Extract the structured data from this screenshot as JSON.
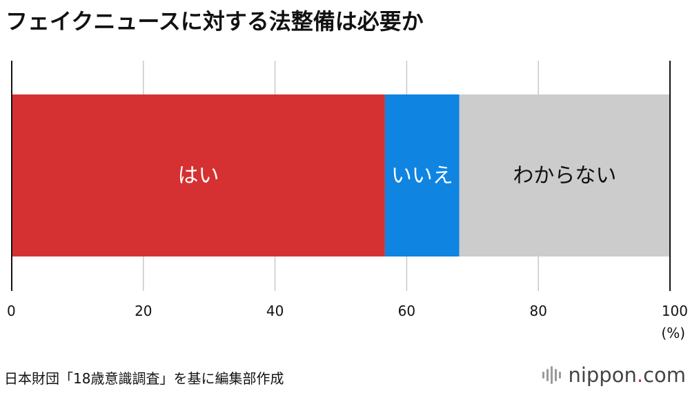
{
  "title": "フェイクニュースに対する法整備は必要か",
  "unit_label": "(%)",
  "source": "日本財団「18歳意識調査」を基に編集部作成",
  "logo": {
    "name": "nippon",
    "dot": ".",
    "tld": "com"
  },
  "colors": {
    "yes": "#d63132",
    "no": "#0f84e1",
    "dont_know": "#cccccc",
    "grid": "#c8c8c8",
    "axis": "#111111"
  },
  "chart_data": {
    "type": "bar",
    "orientation": "horizontal",
    "stacked": true,
    "title": "フェイクニュースに対する法整備は必要か",
    "xlim": [
      0,
      100
    ],
    "x_ticks": [
      0,
      20,
      40,
      60,
      80,
      100
    ],
    "x_unit": "(%)",
    "grid": true,
    "series": [
      {
        "name": "はい",
        "value": 56.7,
        "color": "#d63132",
        "label_color": "#ffffff"
      },
      {
        "name": "いいえ",
        "value": 11.3,
        "color": "#0f84e1",
        "label_color": "#ffffff"
      },
      {
        "name": "わからない",
        "value": 32.0,
        "color": "#cccccc",
        "label_color": "#111111"
      }
    ]
  }
}
